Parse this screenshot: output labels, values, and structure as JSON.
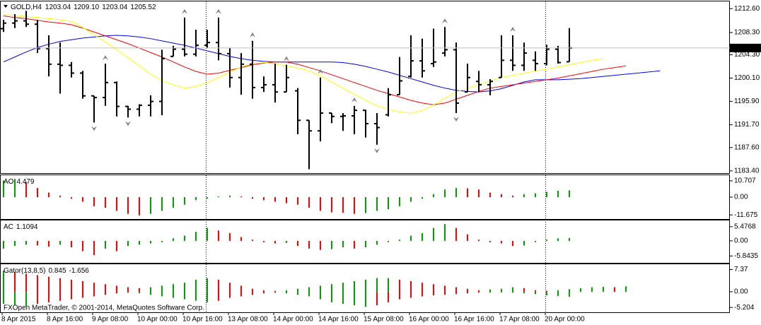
{
  "chart_data": [
    {
      "type": "ohlc",
      "title": "GOLD,H4",
      "last_labels": [
        "1203.04",
        "1209.10",
        "1203.04",
        "1205.52"
      ],
      "categories": [
        "8 Apr 2015",
        null,
        null,
        null,
        "8 Apr 16:00",
        null,
        null,
        null,
        "9 Apr 08:00",
        null,
        null,
        null,
        "10 Apr 00:00",
        null,
        null,
        null,
        "10 Apr 16:00",
        null,
        null,
        null,
        "13 Apr 08:00",
        null,
        null,
        null,
        "14 Apr 00:00",
        null,
        null,
        null,
        "14 Apr 16:00",
        null,
        null,
        null,
        "15 Apr 08:00",
        null,
        null,
        null,
        "16 Apr 00:00",
        null,
        null,
        null,
        "16 Apr 16:00",
        null,
        null,
        null,
        "17 Apr 08:00",
        null,
        null,
        null,
        "20 Apr 00:00",
        null,
        null,
        null,
        null,
        null,
        null,
        null,
        null,
        null,
        null
      ],
      "open": [
        1209.0,
        1210.0,
        1210.4,
        1209.8,
        1205.4,
        1202.6,
        1202.4,
        1201.0,
        1196.9,
        1196.6,
        1199.3,
        1195.0,
        1194.5,
        1195.2,
        1195.9,
        1204.0,
        1205.3,
        1204.4,
        1206.0,
        1206.5,
        1204.5,
        1200.2,
        1202.6,
        1198.4,
        1198.9,
        1197.6,
        1197.8,
        1192.5,
        1190.6,
        1193.8,
        1193.2,
        1193.3,
        1194.3,
        1191.9,
        1193.5,
        1197.1,
        1200.4,
        1203.2,
        1202.7,
        1204.6,
        1205.2,
        1197.6,
        1199.5,
        1198.9,
        1200.2,
        1203.3,
        1202.4,
        1203.3,
        1202.7,
        1205.3,
        1203.04,
        null,
        null,
        null,
        null,
        null,
        null,
        null,
        null
      ],
      "high": [
        1210.6,
        1211.6,
        1212.2,
        1210.6,
        1207.8,
        1206.5,
        1203.0,
        1201.4,
        1196.9,
        1202.7,
        1199.5,
        1195.1,
        1195.4,
        1197.0,
        1205.2,
        1205.9,
        1211.0,
        1208.8,
        1208.8,
        1211.0,
        1205.5,
        1204.6,
        1206.8,
        1200.4,
        1202.7,
        1202.5,
        1198.3,
        1192.5,
        1200.2,
        1193.8,
        1193.8,
        1195.1,
        1194.4,
        1193.8,
        1198.3,
        1203.9,
        1207.8,
        1207.2,
        1209.0,
        1209.3,
        1206.5,
        1202.7,
        1201.4,
        1199.9,
        1207.8,
        1207.8,
        1206.5,
        1204.9,
        1206.1,
        1205.9,
        1209.1,
        null,
        null,
        null,
        null,
        null,
        null,
        null,
        null
      ],
      "low": [
        1208.4,
        1209.1,
        1209.3,
        1204.6,
        1200.4,
        1197.3,
        1200.2,
        1196.4,
        1192.1,
        1195.1,
        1193.2,
        1193.0,
        1193.2,
        1193.2,
        1193.4,
        1204.0,
        1204.0,
        1204.0,
        1205.5,
        1203.3,
        1198.4,
        1197.1,
        1196.4,
        1197.6,
        1195.7,
        1197.6,
        1190.0,
        1183.7,
        1188.7,
        1192.0,
        1190.6,
        1190.0,
        1189.4,
        1188.1,
        1193.2,
        1197.1,
        1200.2,
        1200.2,
        1202.1,
        1204.0,
        1193.8,
        1197.6,
        1197.6,
        1197.0,
        1200.2,
        1201.4,
        1201.4,
        1201.4,
        1202.4,
        1202.7,
        1203.04,
        null,
        null,
        null,
        null,
        null,
        null,
        null,
        null
      ],
      "close": [
        1210.0,
        1210.4,
        1209.8,
        1205.4,
        1202.6,
        1202.4,
        1201.0,
        1196.9,
        1196.6,
        1199.3,
        1195.0,
        1194.5,
        1195.2,
        1195.9,
        1203.6,
        1205.3,
        1204.4,
        1206.0,
        1206.5,
        1204.5,
        1200.2,
        1202.6,
        1198.4,
        1198.9,
        1197.6,
        1200.2,
        1192.5,
        1190.6,
        1193.8,
        1193.2,
        1193.3,
        1194.3,
        1191.9,
        1191.2,
        1197.1,
        1199.6,
        1203.2,
        1201.4,
        1203.0,
        1205.2,
        1195.6,
        1200.2,
        1198.9,
        1199.5,
        1203.3,
        1202.4,
        1204.6,
        1202.7,
        1205.3,
        1202.9,
        1205.52,
        null,
        null,
        null,
        null,
        null,
        null,
        null,
        null
      ],
      "color": "#000000",
      "lines": [
        {
          "color": "#0000ff",
          "values": [
            1203.0,
            1203.9,
            1204.8,
            1205.6,
            1206.2,
            1206.7,
            1207.0,
            1207.3,
            1207.5,
            1207.7,
            1207.8,
            1207.7,
            1207.5,
            1207.2,
            1206.8,
            1206.4,
            1206.0,
            1205.5,
            1205.0,
            1204.5,
            1204.0,
            1203.6,
            1203.3,
            1203.1,
            1203.0,
            1203.0,
            1203.0,
            1203.0,
            1203.0,
            1203.0,
            1202.9,
            1202.6,
            1202.2,
            1201.7,
            1201.2,
            1200.6,
            1200.0,
            1199.4,
            1198.8,
            1198.3,
            1197.9,
            1197.7,
            1197.6,
            1197.8,
            1198.2,
            1198.8,
            1199.4,
            1199.8,
            1199.8,
            1199.8,
            1199.9,
            1200.0,
            1200.2,
            1200.4,
            1200.6,
            1200.8,
            1201.0,
            1201.2,
            1201.4
          ]
        },
        {
          "color": "#ff0000",
          "values": [
            1211.3,
            1211.0,
            1210.8,
            1210.5,
            1210.2,
            1210.0,
            1209.7,
            1209.1,
            1208.4,
            1207.7,
            1207.0,
            1206.3,
            1205.5,
            1204.7,
            1203.9,
            1203.0,
            1202.1,
            1201.3,
            1200.8,
            1201.0,
            1201.5,
            1202.0,
            1202.5,
            1202.8,
            1203.0,
            1203.0,
            1202.6,
            1202.0,
            1201.4,
            1200.7,
            1200.0,
            1199.3,
            1198.6,
            1197.9,
            1197.3,
            1196.7,
            1196.1,
            1195.6,
            1195.3,
            1195.6,
            1196.3,
            1197.0,
            1197.7,
            1198.3,
            1198.6,
            1198.9,
            1199.2,
            1199.5,
            1199.8,
            1200.1,
            1200.5,
            1200.9,
            1201.3,
            1201.7,
            1202.0,
            1202.3,
            null,
            null,
            null
          ]
        },
        {
          "color": "#ffff00",
          "values": [
            1211.5,
            1211.4,
            1211.2,
            1211.0,
            1210.8,
            1210.6,
            1210.3,
            1209.2,
            1207.9,
            1206.6,
            1205.2,
            1203.8,
            1202.3,
            1200.8,
            1199.6,
            1198.9,
            1198.3,
            1198.6,
            1199.3,
            1200.2,
            1201.2,
            1202.1,
            1202.7,
            1202.9,
            1202.7,
            1202.3,
            1201.9,
            1201.4,
            1200.5,
            1199.4,
            1198.3,
            1197.2,
            1196.1,
            1195.1,
            1194.5,
            1194.0,
            1193.8,
            1194.3,
            1195.3,
            1196.5,
            1197.6,
            1198.3,
            1198.9,
            1199.6,
            1200.2,
            1200.6,
            1201.0,
            1201.4,
            1201.7,
            1202.1,
            1202.5,
            1202.9,
            1203.3,
            1203.6,
            null,
            null,
            null,
            null,
            null
          ]
        }
      ],
      "fractal_up": [
        null,
        null,
        null,
        null,
        null,
        null,
        null,
        null,
        null,
        1202.7,
        null,
        null,
        null,
        null,
        null,
        null,
        1211.0,
        null,
        null,
        1211.0,
        null,
        null,
        1206.8,
        null,
        null,
        1202.5,
        null,
        null,
        1200.2,
        null,
        null,
        1195.1,
        null,
        null,
        null,
        null,
        null,
        null,
        null,
        1209.3,
        null,
        null,
        null,
        null,
        null,
        1207.8,
        null,
        null,
        null,
        null,
        null,
        null,
        null,
        null,
        null,
        null,
        null,
        null,
        null
      ],
      "fractal_down": [
        null,
        null,
        null,
        null,
        null,
        null,
        null,
        null,
        1192.1,
        null,
        null,
        1193.0,
        null,
        null,
        null,
        null,
        null,
        null,
        null,
        null,
        null,
        null,
        null,
        null,
        null,
        null,
        null,
        null,
        null,
        null,
        null,
        null,
        null,
        1188.1,
        null,
        null,
        null,
        null,
        null,
        null,
        1193.8,
        null,
        null,
        null,
        null,
        null,
        null,
        null,
        null,
        null,
        null,
        null,
        null,
        null,
        null,
        null,
        null,
        null,
        null
      ],
      "fractal_color": "#808080",
      "ylim": [
        1183.0,
        1213.9
      ],
      "yticks": [
        {
          "value": 1212.6,
          "label": "1212.60"
        },
        {
          "value": 1208.3,
          "label": "1208.30"
        },
        {
          "value": 1204.3,
          "label": "1204.30"
        },
        {
          "value": 1200.1,
          "label": "1200.10"
        },
        {
          "value": 1195.9,
          "label": "1195.90"
        },
        {
          "value": 1191.7,
          "label": "1191.70"
        },
        {
          "value": 1187.6,
          "label": "1187.60"
        },
        {
          "value": 1183.4,
          "label": "1183.40"
        }
      ]
    },
    {
      "type": "histogram",
      "title": "AO",
      "up_color": "#00a000",
      "down_color": "#ff0000",
      "values": [
        11,
        12,
        10,
        6,
        3,
        1,
        -1,
        -3,
        -6,
        -7,
        -9,
        -11,
        -12,
        -11,
        -9,
        -7,
        -5,
        -2,
        -1,
        0.5,
        1,
        0.5,
        -1,
        -2,
        -3,
        -4,
        -5,
        -7,
        -9,
        -10,
        -10.2,
        -11,
        -10.5,
        -9,
        -8,
        -6,
        -3,
        -1,
        2,
        5,
        6,
        5.8,
        5,
        3,
        2,
        1,
        2,
        2.5,
        3.5,
        4.2,
        4.479,
        null,
        null,
        null,
        null,
        null,
        null,
        null,
        null
      ],
      "ylim": [
        -14.4,
        14.4
      ],
      "yticks": [
        10.707,
        {
          "value": 0,
          "label": "0.00"
        },
        -11.675
      ]
    },
    {
      "type": "histogram",
      "title": "AC",
      "up_color": "#00a000",
      "down_color": "#ff0000",
      "values": [
        -3,
        -2,
        -1.5,
        -1.8,
        -2.2,
        -1.5,
        -2.5,
        -4,
        -5.5,
        -3,
        -4,
        -2,
        -1.5,
        -1,
        -0.5,
        1,
        2,
        3.5,
        5,
        4,
        3,
        1.5,
        0.5,
        -0.5,
        -1,
        -0.8,
        -2,
        -3,
        -3.5,
        -3.2,
        -2.5,
        -3,
        -2.5,
        -1.5,
        -0.5,
        0.5,
        2,
        3,
        5,
        6.5,
        5,
        2.5,
        0.5,
        -0.5,
        -1,
        -2,
        -1.8,
        -0.5,
        0.5,
        1,
        1.1094,
        null,
        null,
        null,
        null,
        null,
        null,
        null,
        null
      ],
      "ylim": [
        -8.5,
        7.9
      ],
      "yticks": [
        5.4768,
        {
          "value": 0,
          "label": "0.00"
        },
        -5.8435
      ]
    },
    {
      "type": "gator",
      "title": "Gator(13,8,5)",
      "up_color": "#00a000",
      "down_color": "#ff0000",
      "upper": [
        7,
        6.5,
        6,
        5.5,
        5,
        4.5,
        4,
        3.5,
        3,
        2.5,
        2,
        1.5,
        1.2,
        1.5,
        2,
        2.5,
        3,
        4,
        4.5,
        4,
        3,
        2,
        1,
        0.5,
        0.3,
        0.5,
        1,
        1.5,
        2,
        2.5,
        3,
        3.5,
        4,
        4.5,
        4.5,
        4,
        3.5,
        3,
        2.5,
        2,
        1.5,
        1,
        0.5,
        0.8,
        1,
        1.5,
        1.2,
        0.5,
        0.3,
        0.5,
        0.845,
        1.2,
        1.5,
        1.6,
        1.5,
        1.8,
        null,
        null,
        null
      ],
      "lower": [
        -4,
        -4.5,
        -4.8,
        -4,
        -3.5,
        -3,
        -2.5,
        -2,
        -1.5,
        -1,
        -0.5,
        -0.3,
        -0.5,
        -1,
        -1.5,
        -2,
        -2.5,
        -3,
        -3.5,
        -3,
        -2,
        -1.5,
        -1,
        -0.5,
        -0.3,
        -0.5,
        -1,
        -1.5,
        -2.5,
        -3.5,
        -4,
        -4.5,
        -5,
        -4.5,
        -3.5,
        -2.5,
        -2,
        -1.5,
        -1.2,
        -1,
        -0.8,
        -0.5,
        -0.3,
        -0.3,
        -0.2,
        -0.3,
        -0.5,
        -0.8,
        -1.2,
        -1.4,
        -1.656,
        null,
        null,
        null,
        null,
        null,
        null,
        null,
        null
      ],
      "ylim": [
        -6.8,
        9.1
      ],
      "yticks": [
        7.37,
        {
          "value": 0,
          "label": "0.00"
        },
        -5.204
      ]
    }
  ],
  "footer": "FXOpen MetaTrader, © 2001-2014, MetaQuotes Software Corp."
}
